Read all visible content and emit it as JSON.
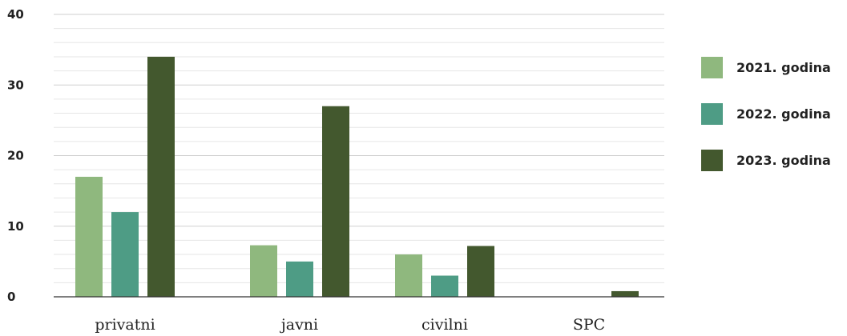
{
  "chart_data": {
    "type": "bar",
    "title": "",
    "xlabel": "",
    "ylabel": "",
    "categories": [
      "privatni",
      "javni",
      "civilni",
      "SPC"
    ],
    "series": [
      {
        "name": "2021. godina",
        "color": "#8fb87e",
        "values": [
          17,
          7.3,
          6,
          0
        ]
      },
      {
        "name": "2022. godina",
        "color": "#4e9c85",
        "values": [
          12,
          5,
          3,
          0
        ]
      },
      {
        "name": "2023. godina",
        "color": "#43582e",
        "values": [
          34,
          27,
          7.2,
          0.8
        ]
      }
    ],
    "ylim": [
      0,
      40
    ],
    "yticks": [
      0,
      10,
      20,
      30,
      40
    ],
    "grid": true,
    "legend_position": "right"
  }
}
